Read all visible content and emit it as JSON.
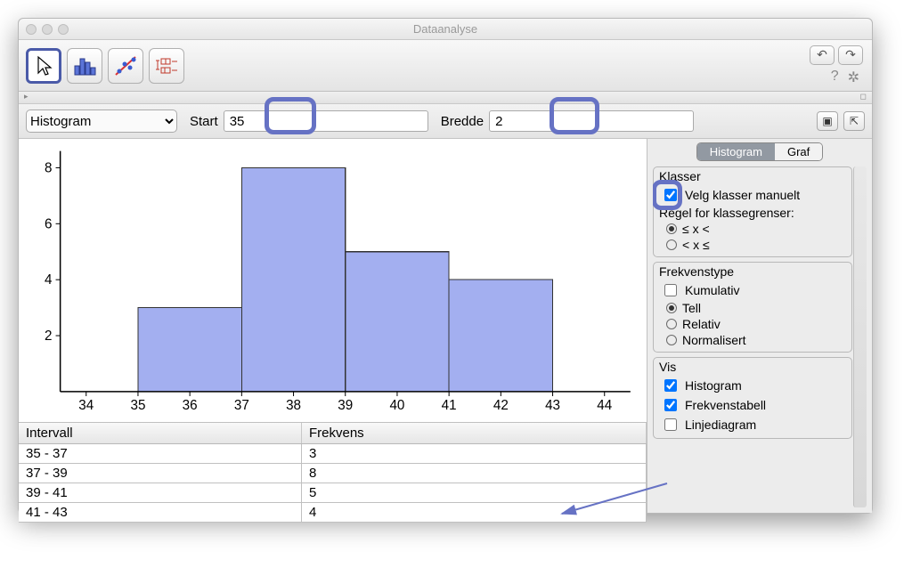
{
  "window": {
    "title": "Dataanalyse"
  },
  "toolbar": {
    "tools": [
      "pointer",
      "histogram",
      "scatter",
      "boxplot"
    ],
    "selected_index": 0
  },
  "controls": {
    "chart_type_options": [
      "Histogram"
    ],
    "chart_type_selected": "Histogram",
    "start_label": "Start",
    "start_value": "35",
    "width_label": "Bredde",
    "width_value": "2"
  },
  "histogram": {
    "type": "histogram",
    "x_min": 33.5,
    "x_max": 44.5,
    "x_ticks": [
      34,
      35,
      36,
      37,
      38,
      39,
      40,
      41,
      42,
      43,
      44
    ],
    "y_min": 0,
    "y_max": 8.6,
    "y_ticks": [
      2,
      4,
      6,
      8
    ],
    "bars": [
      {
        "x0": 35,
        "x1": 37,
        "y": 3
      },
      {
        "x0": 37,
        "x1": 39,
        "y": 8
      },
      {
        "x0": 39,
        "x1": 41,
        "y": 5
      },
      {
        "x0": 41,
        "x1": 43,
        "y": 4
      }
    ],
    "bar_fill": "#a3aff0",
    "bar_stroke": "#333333",
    "axis_color": "#000000",
    "tick_font_size": 15,
    "background": "#ffffff"
  },
  "table": {
    "columns": [
      "Intervall",
      "Frekvens"
    ],
    "rows": [
      [
        "35 - 37",
        "3"
      ],
      [
        "37 - 39",
        "8"
      ],
      [
        "39 - 41",
        "5"
      ],
      [
        "41 - 43",
        "4"
      ]
    ]
  },
  "side": {
    "tabs": [
      "Histogram",
      "Graf"
    ],
    "active_tab": 0,
    "klasser": {
      "title": "Klasser",
      "manual_label": "Velg klasser manuelt",
      "manual_checked": true,
      "rule_label": "Regel for klassegrenser:",
      "rule_options": [
        "≤ x <",
        "< x ≤"
      ],
      "rule_selected": 0
    },
    "frekvenstype": {
      "title": "Frekvenstype",
      "cumulative_label": "Kumulativ",
      "cumulative_checked": false,
      "options": [
        "Tell",
        "Relativ",
        "Normalisert"
      ],
      "selected": 0
    },
    "vis": {
      "title": "Vis",
      "items": [
        {
          "label": "Histogram",
          "checked": true
        },
        {
          "label": "Frekvenstabell",
          "checked": true
        },
        {
          "label": "Linjediagram",
          "checked": false
        }
      ]
    }
  },
  "highlight_color": "#6672c4"
}
